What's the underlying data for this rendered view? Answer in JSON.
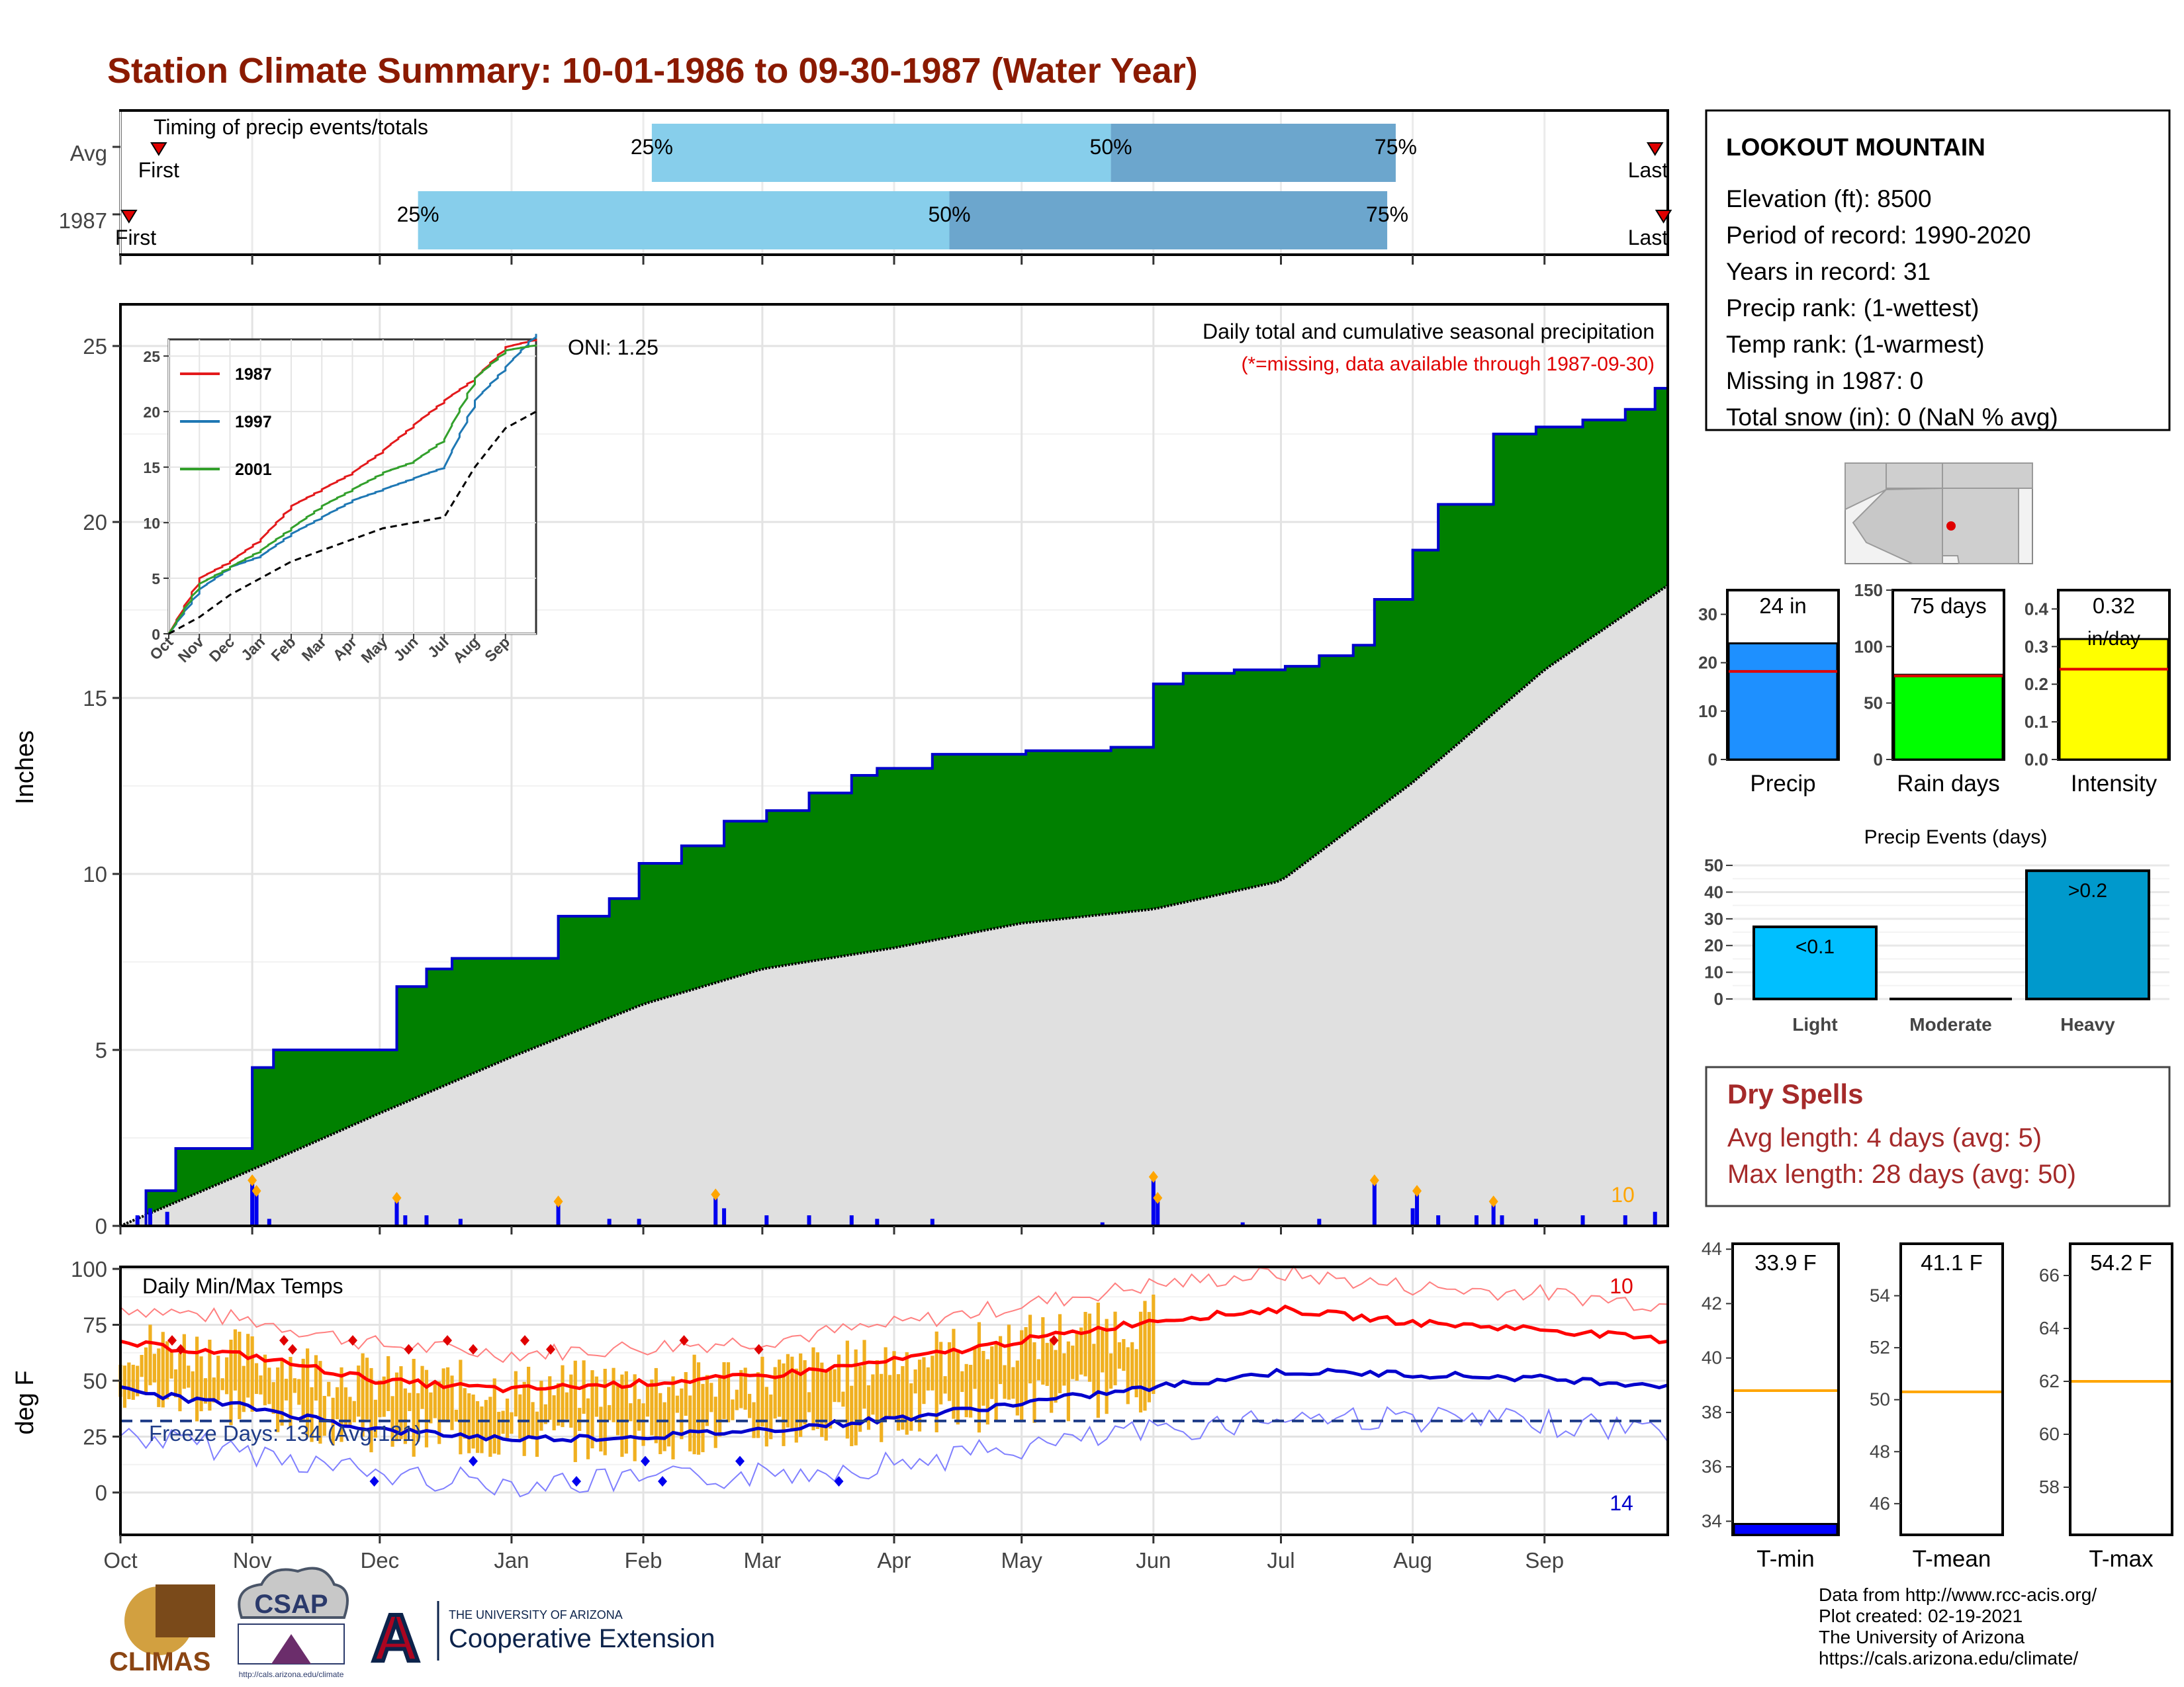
{
  "title": "Station Climate Summary: 10-01-1986 to 09-30-1987 (Water Year)",
  "colors": {
    "title": "#8B1A00",
    "precip_obs": "#008000",
    "precip_line": "#0000CC",
    "normal_fill": "#E0E0E0",
    "bar_daily": "#0000EE",
    "marker": "#FFA500",
    "q1": "#87CEEB",
    "q2": "#6CA6CD",
    "dry": "#A52A2A"
  },
  "months": [
    "Oct",
    "Nov",
    "Dec",
    "Jan",
    "Feb",
    "Mar",
    "Apr",
    "May",
    "Jun",
    "Jul",
    "Aug",
    "Sep"
  ],
  "timing": {
    "title": "Timing of precip events/totals",
    "rows": [
      {
        "label": "Avg",
        "first": "First",
        "last": "Last",
        "q25": "25%",
        "q50": "50%",
        "q75": "75%",
        "first_date": "1986-10-10",
        "last_date": "1987-09-27",
        "d25": "1987-02-03",
        "d50": "1987-05-22",
        "d75": "1987-07-28"
      },
      {
        "label": "1987",
        "first": "First",
        "last": "Last",
        "q25": "25%",
        "q50": "50%",
        "q75": "75%",
        "first_date": "1986-10-03",
        "last_date": "1987-09-29",
        "d25": "1986-12-10",
        "d50": "1987-04-14",
        "d75": "1987-07-26"
      }
    ]
  },
  "main": {
    "ylabel": "Inches",
    "yticks": [
      "0",
      "5",
      "10",
      "15",
      "20",
      "25"
    ],
    "caption1": "Daily total and cumulative seasonal precipitation",
    "caption2": "(*=missing, data available through 1987-09-30)",
    "oni": "ONI: 1.25",
    "corner_label": "10"
  },
  "inset": {
    "yticks": [
      "0",
      "5",
      "10",
      "15",
      "20",
      "25"
    ],
    "xticks": [
      "Oct",
      "Nov",
      "Dec",
      "Jan",
      "Feb",
      "Mar",
      "Apr",
      "May",
      "Jun",
      "Jul",
      "Aug",
      "Sep"
    ],
    "legend": [
      {
        "name": "1987",
        "color": "#E31A1C"
      },
      {
        "name": "1997",
        "color": "#1F78B4"
      },
      {
        "name": "2001",
        "color": "#33A02C"
      }
    ]
  },
  "temps": {
    "title": "Daily Min/Max Temps",
    "ylabel": "deg F",
    "yticks": [
      "0",
      "25",
      "50",
      "75",
      "100"
    ],
    "freeze": "Freeze Days: 134 (Avg:121)",
    "max_count": "10",
    "min_count": "14"
  },
  "station": {
    "name": "LOOKOUT MOUNTAIN",
    "lines": [
      "Elevation (ft): 8500",
      "Period of record: 1990-2020",
      "Years in record: 31",
      "Precip rank:  (1-wettest)",
      "Temp rank:  (1-warmest)",
      "Missing in 1987: 0",
      "Total snow (in): 0 (NaN % avg)"
    ]
  },
  "minibars": [
    {
      "label": "Precip",
      "value_text": "24 in",
      "value": 24,
      "avg": 18.2,
      "ymax": 35,
      "yticks": [
        "0",
        "10",
        "20",
        "30"
      ],
      "tickvals": [
        0,
        10,
        20,
        30
      ],
      "color": "#1E90FF"
    },
    {
      "label": "Rain days",
      "value_text": "75 days",
      "value": 75,
      "avg": 74,
      "ymax": 150,
      "yticks": [
        "0",
        "50",
        "100",
        "150"
      ],
      "tickvals": [
        0,
        50,
        100,
        150
      ],
      "color": "#00FF00"
    },
    {
      "label": "Intensity",
      "value_text": "0.32",
      "value_text2": "in/day",
      "value": 0.32,
      "avg": 0.24,
      "ymax": 0.45,
      "yticks": [
        "0.0",
        "0.1",
        "0.2",
        "0.3",
        "0.4"
      ],
      "tickvals": [
        0,
        0.1,
        0.2,
        0.3,
        0.4
      ],
      "color": "#FFFF00"
    }
  ],
  "events": {
    "title": "Precip Events (days)",
    "yticks": [
      "0",
      "10",
      "20",
      "30",
      "40",
      "50"
    ],
    "bars": [
      {
        "label": "Light",
        "tag": "<0.1",
        "value": 27,
        "color": "#00BFFF"
      },
      {
        "label": "Moderate",
        "tag": "",
        "value": 0,
        "color": "#1E90FF"
      },
      {
        "label": "Heavy",
        "tag": ">0.2",
        "value": 48,
        "color": "#0099CC"
      }
    ]
  },
  "dry": {
    "title": "Dry Spells",
    "avg": "Avg length: 4 days (avg: 5)",
    "max": "Max length: 28 days (avg: 50)"
  },
  "tbars": [
    {
      "label": "T-min",
      "value_text": "33.9 F",
      "value": 33.9,
      "avg": 38.8,
      "ymin": 33.5,
      "ymax": 44.2,
      "yticks": [
        "34",
        "36",
        "38",
        "40",
        "42",
        "44"
      ],
      "tickvals": [
        34,
        36,
        38,
        40,
        42,
        44
      ],
      "color": "#0000FF"
    },
    {
      "label": "T-mean",
      "value_text": "41.1 F",
      "value": 41.1,
      "avg": 50.3,
      "ymin": 44.8,
      "ymax": 56.0,
      "yticks": [
        "46",
        "48",
        "50",
        "52",
        "54"
      ],
      "tickvals": [
        46,
        48,
        50,
        52,
        54
      ],
      "color": "#888888"
    },
    {
      "label": "T-max",
      "value_text": "54.2 F",
      "value": 54.2,
      "avg": 62.0,
      "ymin": 56.2,
      "ymax": 67.2,
      "yticks": [
        "58",
        "60",
        "62",
        "64",
        "66"
      ],
      "tickvals": [
        58,
        60,
        62,
        64,
        66
      ],
      "color": "#FF0000"
    }
  ],
  "footer": {
    "lines": [
      "Data from http://www.rcc-acis.org/",
      "Plot created: 02-19-2021",
      "The University of Arizona",
      "https://cals.arizona.edu/climate/"
    ]
  },
  "logos": {
    "climas": "CLIMAS",
    "csap": "CSAP",
    "csap_url": "http://cals.arizona.edu/climate",
    "ua_top": "THE UNIVERSITY OF ARIZONA",
    "ua_bottom": "Cooperative Extension",
    "ua_letter": "A"
  },
  "chart_data": {
    "type": "area",
    "observed_cumulative": {
      "x": [
        "1986-10-01",
        "1986-10-07",
        "1986-10-14",
        "1986-11-01",
        "1986-11-06",
        "1986-12-05",
        "1986-12-12",
        "1986-12-18",
        "1987-01-12",
        "1987-01-24",
        "1987-01-31",
        "1987-02-10",
        "1987-02-20",
        "1987-03-02",
        "1987-03-12",
        "1987-03-22",
        "1987-03-28",
        "1987-04-10",
        "1987-05-02",
        "1987-05-22",
        "1987-06-01",
        "1987-06-08",
        "1987-06-20",
        "1987-07-02",
        "1987-07-10",
        "1987-07-18",
        "1987-07-23",
        "1987-08-01",
        "1987-08-07",
        "1987-08-20",
        "1987-08-30",
        "1987-09-10",
        "1987-09-20",
        "1987-09-27",
        "1987-09-30"
      ],
      "y": [
        0,
        1.0,
        2.2,
        4.5,
        5.0,
        6.8,
        7.3,
        7.6,
        8.8,
        9.3,
        10.3,
        10.8,
        11.5,
        11.8,
        12.3,
        12.8,
        13.0,
        13.4,
        13.5,
        13.6,
        15.4,
        15.7,
        15.8,
        15.9,
        16.2,
        16.5,
        17.8,
        19.2,
        20.5,
        22.5,
        22.7,
        22.9,
        23.2,
        23.8,
        24.0
      ]
    },
    "normal_cumulative": {
      "x": [
        "1986-10-01",
        "1986-11-01",
        "1986-12-01",
        "1987-01-01",
        "1987-02-01",
        "1987-03-01",
        "1987-04-01",
        "1987-05-01",
        "1987-06-01",
        "1987-07-01",
        "1987-08-01",
        "1987-09-01",
        "1987-09-30"
      ],
      "y": [
        0,
        1.6,
        3.2,
        4.8,
        6.3,
        7.3,
        7.9,
        8.6,
        9.0,
        9.8,
        12.6,
        15.8,
        18.2
      ]
    },
    "daily_precip": {
      "x": [
        "1986-10-05",
        "1986-10-08",
        "1986-10-12",
        "1986-11-01",
        "1986-11-02",
        "1986-11-05",
        "1986-12-05",
        "1986-12-07",
        "1986-12-12",
        "1986-12-20",
        "1987-01-12",
        "1987-01-24",
        "1987-01-31",
        "1987-02-18",
        "1987-02-20",
        "1987-03-02",
        "1987-03-12",
        "1987-03-22",
        "1987-03-28",
        "1987-04-10",
        "1987-05-20",
        "1987-06-01",
        "1987-06-02",
        "1987-06-22",
        "1987-07-10",
        "1987-07-23",
        "1987-08-01",
        "1987-08-02",
        "1987-08-07",
        "1987-08-16",
        "1987-08-20",
        "1987-08-22",
        "1987-08-30",
        "1987-09-10",
        "1987-09-20",
        "1987-09-27"
      ],
      "y": [
        0.3,
        0.5,
        0.4,
        1.2,
        0.9,
        0.2,
        0.7,
        0.3,
        0.3,
        0.2,
        0.6,
        0.2,
        0.2,
        0.8,
        0.5,
        0.3,
        0.3,
        0.3,
        0.2,
        0.2,
        0.1,
        1.3,
        0.7,
        0.1,
        0.2,
        1.2,
        0.5,
        0.9,
        0.3,
        0.3,
        0.6,
        0.3,
        0.2,
        0.3,
        0.3,
        0.4
      ]
    },
    "temps_avg_max": {
      "x": [
        "1986-10-01",
        "1986-11-01",
        "1986-12-01",
        "1987-01-01",
        "1987-02-01",
        "1987-03-01",
        "1987-04-01",
        "1987-05-01",
        "1987-06-01",
        "1987-07-01",
        "1987-08-01",
        "1987-09-01",
        "1987-09-30"
      ],
      "y": [
        67,
        61,
        50,
        46,
        49,
        52,
        59,
        68,
        77,
        82,
        76,
        73,
        68
      ]
    },
    "temps_avg_min": {
      "x": [
        "1986-10-01",
        "1986-11-01",
        "1986-12-01",
        "1987-01-01",
        "1987-02-01",
        "1987-03-01",
        "1987-04-01",
        "1987-05-01",
        "1987-06-01",
        "1987-07-01",
        "1987-08-01",
        "1987-09-01",
        "1987-09-30"
      ],
      "y": [
        46,
        38,
        28,
        24,
        25,
        28,
        33,
        40,
        47,
        54,
        53,
        51,
        48
      ]
    },
    "inset_series": [
      {
        "name": "1987",
        "x": [
          0,
          1,
          2,
          3,
          4,
          5,
          6,
          7,
          8,
          9,
          10,
          11,
          12
        ],
        "y": [
          0,
          5,
          6.5,
          8.5,
          11.5,
          13,
          14.5,
          16.5,
          18.8,
          21,
          23,
          25.8,
          26.5
        ]
      },
      {
        "name": "1997",
        "x": [
          0,
          1,
          2,
          3,
          4,
          5,
          6,
          7,
          8,
          9,
          10,
          11,
          12
        ],
        "y": [
          0,
          4,
          6,
          7,
          9,
          10.5,
          12,
          13,
          14,
          15,
          21,
          24,
          27
        ]
      },
      {
        "name": "2001",
        "x": [
          0,
          1,
          2,
          3,
          4,
          5,
          6,
          7,
          8,
          9,
          10,
          11,
          12
        ],
        "y": [
          0,
          4.5,
          6,
          7.5,
          9.5,
          11.5,
          13,
          14.5,
          15.5,
          17.5,
          23,
          25.5,
          26
        ]
      },
      {
        "name": "avg",
        "x": [
          0,
          1,
          2,
          3,
          4,
          5,
          6,
          7,
          8,
          9,
          10,
          11,
          12
        ],
        "y": [
          0,
          1.5,
          3.5,
          5,
          6.5,
          7.5,
          8.5,
          9.5,
          10,
          10.5,
          15,
          18.5,
          20
        ]
      }
    ],
    "axis_y_range_main": [
      0,
      26
    ],
    "axis_y_range_temp": [
      -15,
      100
    ]
  }
}
